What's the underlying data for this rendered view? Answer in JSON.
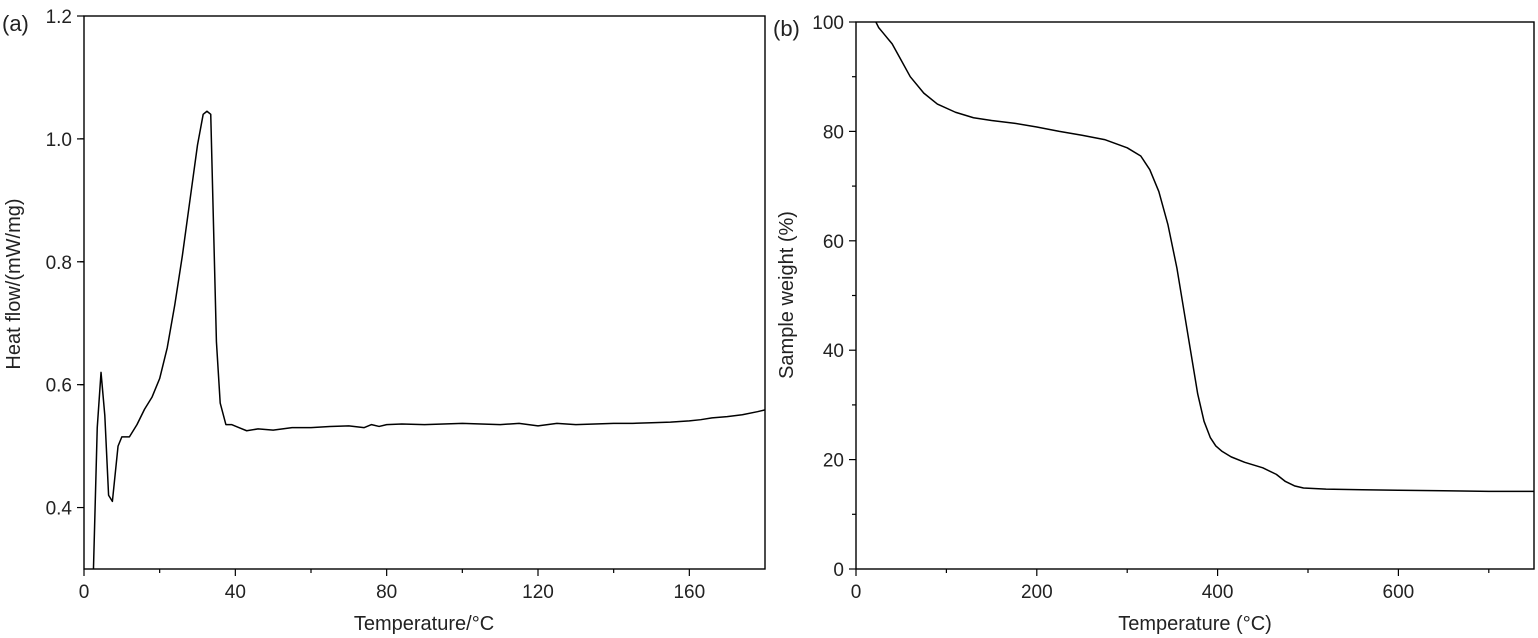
{
  "chart_data": [
    {
      "type": "line",
      "panel_label": "(a)",
      "xlabel": "Temperature/°C",
      "ylabel": "Heat flow/(mW/mg)",
      "xlim": [
        0,
        180
      ],
      "ylim": [
        0.3,
        1.2
      ],
      "xticks": [
        "0",
        "40",
        "80",
        "120",
        "160"
      ],
      "yticks": [
        "0.4",
        "0.6",
        "0.8",
        "1.0",
        "1.2"
      ],
      "grid": false,
      "series": [
        {
          "x": [
            2.5,
            3.5,
            4.5,
            5.5,
            6.5,
            7.5,
            9,
            10,
            12,
            14,
            16,
            18,
            20,
            22,
            24,
            26,
            28,
            30,
            31.5,
            32.5,
            33.5,
            35,
            36,
            37.5,
            39,
            41,
            43,
            46,
            50,
            55,
            60,
            65,
            70,
            74,
            76,
            78,
            80,
            84,
            90,
            100,
            105,
            110,
            115,
            120,
            125,
            130,
            135,
            140,
            145,
            150,
            155,
            160,
            163,
            166,
            170,
            174,
            178,
            180
          ],
          "y": [
            0.3,
            0.53,
            0.62,
            0.55,
            0.42,
            0.41,
            0.5,
            0.515,
            0.515,
            0.535,
            0.56,
            0.58,
            0.61,
            0.66,
            0.73,
            0.81,
            0.9,
            0.99,
            1.04,
            1.045,
            1.04,
            0.67,
            0.57,
            0.535,
            0.535,
            0.53,
            0.525,
            0.528,
            0.526,
            0.53,
            0.53,
            0.532,
            0.533,
            0.53,
            0.535,
            0.532,
            0.535,
            0.536,
            0.535,
            0.537,
            0.536,
            0.535,
            0.537,
            0.533,
            0.537,
            0.535,
            0.536,
            0.537,
            0.537,
            0.538,
            0.539,
            0.541,
            0.543,
            0.546,
            0.548,
            0.551,
            0.556,
            0.559
          ]
        }
      ]
    },
    {
      "type": "line",
      "panel_label": "(b)",
      "xlabel": "Temperature (°C)",
      "ylabel": "Sample weight (%)",
      "xlim": [
        0,
        750
      ],
      "ylim": [
        0,
        100
      ],
      "xticks": [
        "0",
        "200",
        "400",
        "600"
      ],
      "yticks": [
        "0",
        "20",
        "40",
        "60",
        "80",
        "100"
      ],
      "grid": false,
      "series": [
        {
          "x": [
            22,
            25,
            30,
            40,
            50,
            60,
            75,
            90,
            110,
            130,
            150,
            175,
            200,
            225,
            250,
            275,
            300,
            315,
            325,
            335,
            345,
            355,
            362,
            370,
            378,
            385,
            392,
            398,
            405,
            415,
            430,
            450,
            465,
            475,
            485,
            495,
            520,
            560,
            600,
            650,
            700,
            750
          ],
          "y": [
            100,
            99,
            98,
            96,
            93,
            90,
            87,
            85,
            83.5,
            82.5,
            82,
            81.5,
            80.8,
            80,
            79.3,
            78.5,
            77,
            75.5,
            73,
            69,
            63,
            55,
            48,
            40,
            32,
            27,
            24,
            22.5,
            21.5,
            20.5,
            19.5,
            18.5,
            17.3,
            16,
            15.2,
            14.8,
            14.6,
            14.5,
            14.4,
            14.3,
            14.2,
            14.2
          ]
        }
      ]
    }
  ]
}
